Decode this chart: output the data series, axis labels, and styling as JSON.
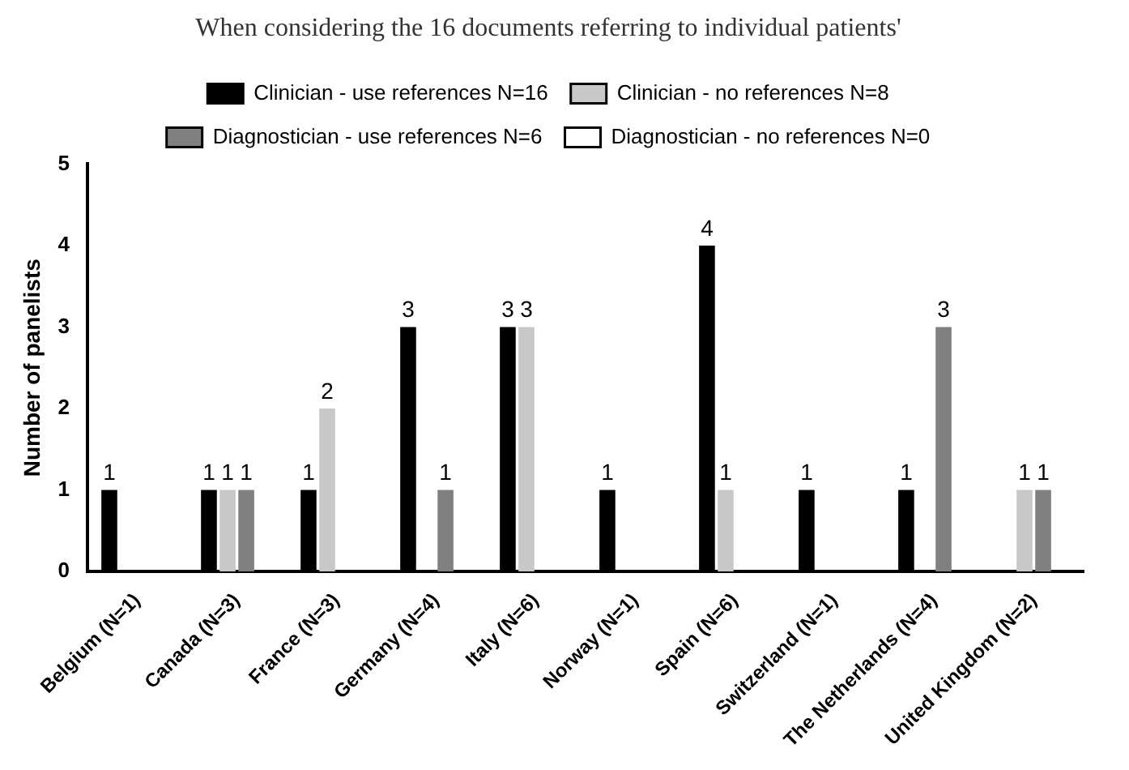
{
  "chart_data": {
    "type": "bar",
    "title": "When considering the 16 documents referring to individual patients'",
    "ylabel": "Number of panelists",
    "categories": [
      "Belgium (N=1)",
      "Canada (N=3)",
      "France (N=3)",
      "Germany (N=4)",
      "Italy (N=6)",
      "Norway (N=1)",
      "Spain (N=6)",
      "Switzerland (N=1)",
      "The Netherlands (N=4)",
      "United Kingdom (N=2)"
    ],
    "series": [
      {
        "name": "Clinician - use references N=16",
        "color": "#000000",
        "values": [
          1,
          1,
          1,
          3,
          3,
          1,
          4,
          1,
          1,
          0
        ],
        "value_labels": [
          "1",
          "1",
          "1",
          "3",
          "3",
          "1",
          "4",
          "1",
          "1",
          null
        ]
      },
      {
        "name": "Clinician - no references N=8",
        "color": "#c8c8c8",
        "values": [
          0,
          1,
          2,
          0,
          3,
          0,
          1,
          0,
          0,
          1
        ],
        "value_labels": [
          null,
          "1",
          "2",
          null,
          "3",
          null,
          "1",
          null,
          null,
          "1"
        ]
      },
      {
        "name": "Diagnostician - use references N=6",
        "color": "#808080",
        "values": [
          0,
          1,
          0,
          1,
          0,
          0,
          0,
          0,
          3,
          1
        ],
        "value_labels": [
          null,
          "1",
          null,
          "1",
          null,
          null,
          null,
          null,
          "3",
          "1"
        ]
      },
      {
        "name": "Diagnostician - no references N=0",
        "color": "#ffffff",
        "values": [
          0,
          0,
          0,
          0,
          0,
          0,
          0,
          0,
          0,
          0
        ],
        "value_labels": [
          null,
          null,
          null,
          null,
          null,
          null,
          null,
          null,
          null,
          null
        ]
      }
    ],
    "ylim": [
      0,
      5
    ],
    "yticks": [
      0,
      1,
      2,
      3,
      4,
      5
    ],
    "grid": false,
    "legend": "top"
  }
}
